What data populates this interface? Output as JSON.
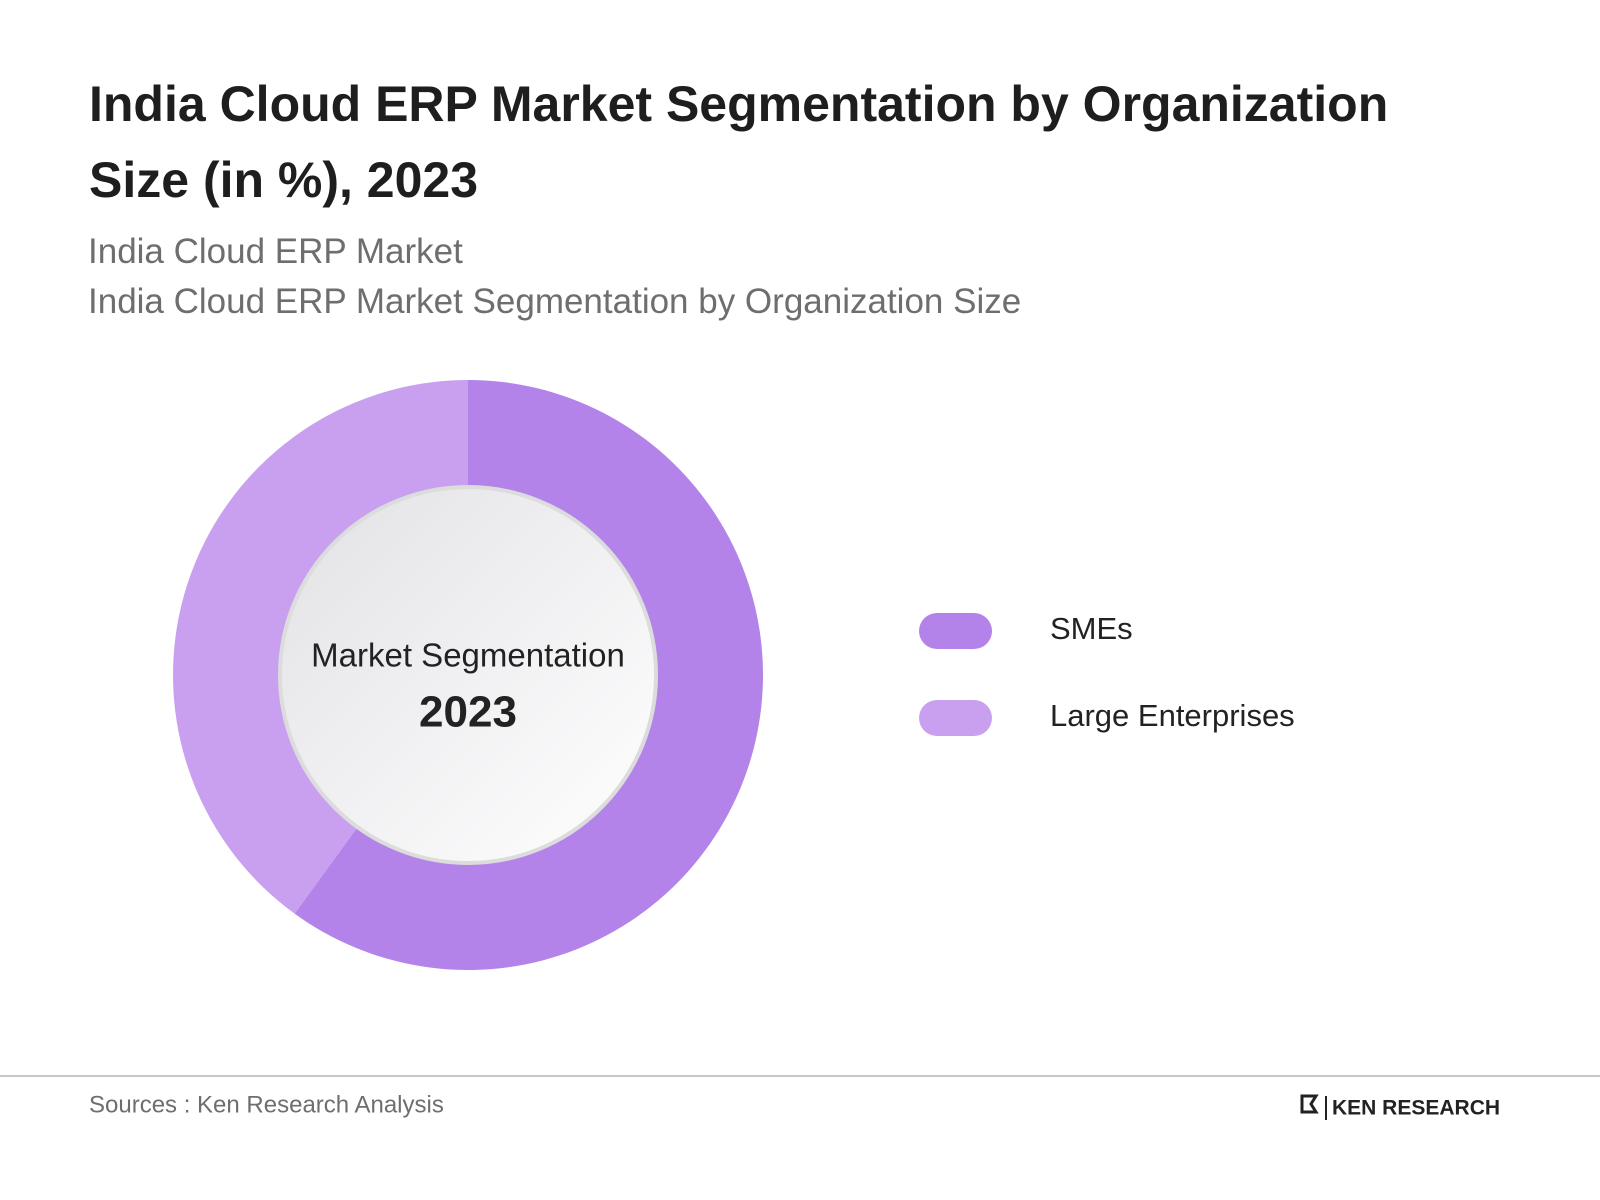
{
  "chart_data": {
    "type": "donut",
    "title": "India Cloud ERP Market Segmentation by Organization Size (in %), 2023",
    "subtitles": [
      "India Cloud ERP Market",
      "India Cloud ERP Market Segmentation by Organization Size"
    ],
    "center_label": "Market Segmentation",
    "center_year": "2023",
    "categories": [
      "SMEs",
      "Large Enterprises"
    ],
    "values": [
      60,
      40
    ],
    "colors": [
      "#b383ea",
      "#c8a0ef"
    ]
  },
  "footer": {
    "source": "Sources : Ken Research Analysis",
    "logo": "KEN RESEARCH"
  }
}
